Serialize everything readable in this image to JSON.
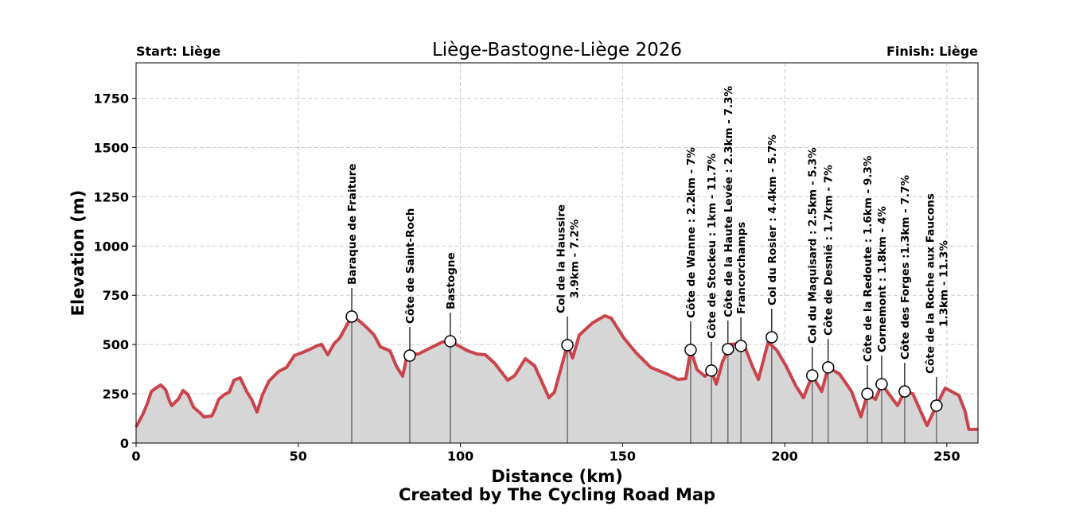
{
  "chart_data": {
    "type": "area",
    "title": "Liège-Bastogne-Liège 2026",
    "start_label": "Start: Liège",
    "finish_label": "Finish: Liège",
    "xlabel": "Distance (km)",
    "ylabel": "Elevation (m)",
    "credit": "Created by The Cycling Road Map",
    "xlim": [
      0,
      259.6
    ],
    "ylim": [
      0,
      1930
    ],
    "xticks": [
      0,
      50,
      100,
      150,
      200,
      250
    ],
    "yticks": [
      0,
      250,
      500,
      750,
      1000,
      1250,
      1500,
      1750
    ],
    "grid": true,
    "line_color": "#c9444b",
    "fill_color": "#d6d6d6",
    "profile": [
      [
        0,
        81
      ],
      [
        2.2,
        150
      ],
      [
        3.4,
        198
      ],
      [
        4.7,
        262
      ],
      [
        6.1,
        279
      ],
      [
        7.6,
        295
      ],
      [
        9.1,
        271
      ],
      [
        10.3,
        214
      ],
      [
        11,
        190
      ],
      [
        13,
        222
      ],
      [
        14.5,
        267
      ],
      [
        16,
        246
      ],
      [
        17.7,
        182
      ],
      [
        19.9,
        150
      ],
      [
        20.9,
        133
      ],
      [
        23.3,
        137
      ],
      [
        24.3,
        170
      ],
      [
        25.5,
        222
      ],
      [
        27.2,
        246
      ],
      [
        28.7,
        258
      ],
      [
        30.2,
        319
      ],
      [
        32.1,
        331
      ],
      [
        34.1,
        262
      ],
      [
        35.6,
        222
      ],
      [
        37.3,
        158
      ],
      [
        39,
        246
      ],
      [
        41,
        315
      ],
      [
        43.9,
        363
      ],
      [
        46.4,
        384
      ],
      [
        48.8,
        444
      ],
      [
        51.3,
        460
      ],
      [
        53.7,
        477
      ],
      [
        55.7,
        493
      ],
      [
        57.2,
        501
      ],
      [
        59.1,
        448
      ],
      [
        61.1,
        505
      ],
      [
        62.8,
        533
      ],
      [
        64.8,
        594
      ],
      [
        66.5,
        642
      ],
      [
        68.4,
        626
      ],
      [
        70.9,
        590
      ],
      [
        73.4,
        549
      ],
      [
        75.3,
        489
      ],
      [
        78.3,
        468
      ],
      [
        80.2,
        392
      ],
      [
        82.2,
        339
      ],
      [
        83.7,
        456
      ],
      [
        87,
        452
      ],
      [
        90.5,
        481
      ],
      [
        94.5,
        513
      ],
      [
        96.9,
        517
      ],
      [
        102.3,
        468
      ],
      [
        105.2,
        452
      ],
      [
        107.7,
        448
      ],
      [
        110.6,
        404
      ],
      [
        114.6,
        319
      ],
      [
        116.8,
        343
      ],
      [
        120,
        428
      ],
      [
        122.9,
        392
      ],
      [
        124.9,
        319
      ],
      [
        127.3,
        230
      ],
      [
        129,
        258
      ],
      [
        133,
        497
      ],
      [
        134.6,
        432
      ],
      [
        136.7,
        549
      ],
      [
        140.8,
        610
      ],
      [
        144.5,
        646
      ],
      [
        146.5,
        634
      ],
      [
        150.4,
        533
      ],
      [
        154.3,
        456
      ],
      [
        158.7,
        384
      ],
      [
        163.6,
        351
      ],
      [
        167.1,
        323
      ],
      [
        169.5,
        327
      ],
      [
        171,
        473
      ],
      [
        173,
        372
      ],
      [
        175.4,
        339
      ],
      [
        177.4,
        368
      ],
      [
        178.9,
        299
      ],
      [
        180.8,
        412
      ],
      [
        183.3,
        501
      ],
      [
        187.3,
        505
      ],
      [
        190,
        392
      ],
      [
        191.9,
        323
      ],
      [
        194.9,
        513
      ],
      [
        197.5,
        473
      ],
      [
        200.4,
        392
      ],
      [
        203.4,
        291
      ],
      [
        205.8,
        230
      ],
      [
        208.5,
        343
      ],
      [
        211.4,
        262
      ],
      [
        213.4,
        384
      ],
      [
        216.9,
        351
      ],
      [
        220.6,
        262
      ],
      [
        223.5,
        133
      ],
      [
        225.5,
        250
      ],
      [
        228,
        222
      ],
      [
        229.9,
        299
      ],
      [
        234.8,
        190
      ],
      [
        237,
        262
      ],
      [
        239.5,
        250
      ],
      [
        243.9,
        89
      ],
      [
        246.8,
        190
      ],
      [
        249.5,
        279
      ],
      [
        253.7,
        242
      ],
      [
        255.6,
        162
      ],
      [
        256.8,
        69
      ],
      [
        259.6,
        69
      ]
    ],
    "climbs": [
      {
        "km": 66.5,
        "elevation": 642,
        "lines": [
          "Baraque de Fraiture"
        ]
      },
      {
        "km": 84.4,
        "elevation": 444,
        "lines": [
          "Côte de Saint-Roch"
        ]
      },
      {
        "km": 96.9,
        "elevation": 517,
        "lines": [
          "Bastogne"
        ]
      },
      {
        "km": 133.0,
        "elevation": 497,
        "lines": [
          "Col de la Haussire",
          "3.9km - 7.2%"
        ]
      },
      {
        "km": 171.0,
        "elevation": 473,
        "lines": [
          "Côte de Wanne : 2.2km - 7%"
        ]
      },
      {
        "km": 177.4,
        "elevation": 368,
        "lines": [
          "Côte de Stockeu : 1km - 11.7%"
        ]
      },
      {
        "km": 182.5,
        "elevation": 477,
        "lines": [
          "Côte de la Haute Levée : 2.3km - 7.3%"
        ]
      },
      {
        "km": 186.5,
        "elevation": 493,
        "lines": [
          "Francorchamps"
        ]
      },
      {
        "km": 196.0,
        "elevation": 537,
        "lines": [
          "Col du Rosier : 4.4km - 5.7%"
        ]
      },
      {
        "km": 208.5,
        "elevation": 343,
        "lines": [
          "Col du Maquisard : 2.5km - 5.3%"
        ]
      },
      {
        "km": 213.4,
        "elevation": 384,
        "lines": [
          "Côte de Desnié : 1.7km - 7%"
        ]
      },
      {
        "km": 225.5,
        "elevation": 250,
        "lines": [
          "Côte de la Redoute : 1.6km - 9.3%"
        ]
      },
      {
        "km": 229.9,
        "elevation": 299,
        "lines": [
          "Cornemont : 1.8km - 4%"
        ]
      },
      {
        "km": 237.0,
        "elevation": 262,
        "lines": [
          "Côte des Forges :1.3km - 7.7%"
        ]
      },
      {
        "km": 246.8,
        "elevation": 190,
        "lines": [
          "Côte de la Roche aux Faucons",
          "1.3km - 11.3%"
        ]
      }
    ]
  }
}
